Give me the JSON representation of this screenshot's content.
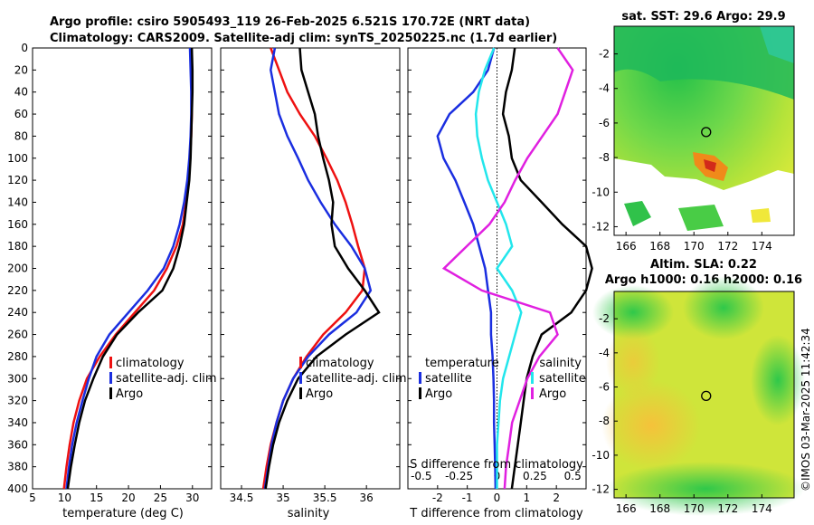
{
  "titles": {
    "line1": "Argo profile: csiro 5905493_119 26-Feb-2025 6.521S 170.72E (NRT data)",
    "line2": "Climatology: CARS2009. Satellite-adj clim: synTS_20250225.nc (1.7d earlier)",
    "sst": "sat. SST: 29.6 Argo: 29.9",
    "sla1": "Altim. SLA: 0.22",
    "sla2": "Argo h1000: 0.16 h2000: 0.16"
  },
  "copyright": "©IMOS 03-Mar-2025 11:42:34",
  "colors": {
    "clim": "#ee1111",
    "sat": "#1a2ee0",
    "argo": "#000000",
    "cyan": "#22e6ec",
    "magenta": "#e020e0"
  },
  "depth_ticks": [
    "0",
    "20",
    "40",
    "60",
    "80",
    "100",
    "120",
    "140",
    "160",
    "180",
    "200",
    "220",
    "240",
    "260",
    "280",
    "300",
    "320",
    "340",
    "360",
    "380",
    "400"
  ],
  "chart_data": [
    {
      "type": "line",
      "title": "",
      "xlabel": "temperature (deg C)",
      "ylabel": "depth",
      "xlim": [
        5,
        33
      ],
      "ylim": [
        400,
        0
      ],
      "xticks": [
        "5",
        "10",
        "15",
        "20",
        "25",
        "30"
      ],
      "legend": [
        "climatology",
        "satellite-adj. clim",
        "Argo"
      ],
      "legend_location": "lower-right",
      "series": [
        {
          "name": "climatology",
          "x": [
            29.8,
            29.9,
            29.9,
            29.9,
            29.8,
            29.6,
            29.4,
            29.0,
            28.5,
            27.5,
            26.0,
            24.0,
            21.0,
            18.0,
            15.5,
            13.5,
            12.3,
            11.4,
            10.8,
            10.3,
            9.9
          ],
          "y": [
            0,
            20,
            40,
            60,
            80,
            100,
            120,
            140,
            160,
            180,
            200,
            220,
            240,
            260,
            280,
            300,
            320,
            340,
            360,
            380,
            400
          ]
        },
        {
          "name": "satellite-adj. clim",
          "x": [
            29.6,
            29.7,
            29.8,
            29.8,
            29.7,
            29.5,
            29.2,
            28.7,
            28.0,
            27.0,
            25.5,
            23.0,
            20.0,
            17.0,
            15.0,
            13.8,
            12.8,
            11.9,
            11.2,
            10.7,
            10.3
          ],
          "y": [
            0,
            20,
            40,
            60,
            80,
            100,
            120,
            140,
            160,
            180,
            200,
            220,
            240,
            260,
            280,
            300,
            320,
            340,
            360,
            380,
            400
          ]
        },
        {
          "name": "Argo",
          "x": [
            29.9,
            30.0,
            30.0,
            29.9,
            29.8,
            29.7,
            29.5,
            29.1,
            28.7,
            28.0,
            27.0,
            25.3,
            21.5,
            18.2,
            16.0,
            14.5,
            13.2,
            12.3,
            11.6,
            11.0,
            10.5
          ],
          "y": [
            0,
            20,
            40,
            60,
            80,
            100,
            120,
            140,
            160,
            180,
            200,
            220,
            240,
            260,
            280,
            300,
            320,
            340,
            360,
            380,
            400
          ]
        }
      ]
    },
    {
      "type": "line",
      "title": "",
      "xlabel": "salinity",
      "ylabel": "depth",
      "xlim": [
        34.25,
        36.4
      ],
      "ylim": [
        400,
        0
      ],
      "xticks": [
        "34.5",
        "35",
        "35.5",
        "36"
      ],
      "legend": [
        "climatology",
        "satellite-adj. clim",
        "Argo"
      ],
      "legend_location": "lower-right",
      "series": [
        {
          "name": "climatology",
          "x": [
            34.85,
            34.95,
            35.05,
            35.2,
            35.38,
            35.52,
            35.65,
            35.75,
            35.83,
            35.9,
            35.98,
            35.95,
            35.75,
            35.48,
            35.28,
            35.12,
            35.0,
            34.92,
            34.85,
            34.8,
            34.76
          ],
          "y": [
            0,
            20,
            40,
            60,
            80,
            100,
            120,
            140,
            160,
            180,
            200,
            220,
            240,
            260,
            280,
            300,
            320,
            340,
            360,
            380,
            400
          ]
        },
        {
          "name": "satellite-adj. clim",
          "x": [
            34.9,
            34.85,
            34.9,
            34.95,
            35.05,
            35.18,
            35.3,
            35.45,
            35.62,
            35.82,
            35.98,
            36.05,
            35.88,
            35.55,
            35.3,
            35.12,
            35.0,
            34.92,
            34.86,
            34.82,
            34.78
          ],
          "y": [
            0,
            20,
            40,
            60,
            80,
            100,
            120,
            140,
            160,
            180,
            200,
            220,
            240,
            260,
            280,
            300,
            320,
            340,
            360,
            380,
            400
          ]
        },
        {
          "name": "Argo",
          "x": [
            35.2,
            35.22,
            35.3,
            35.38,
            35.42,
            35.48,
            35.55,
            35.6,
            35.58,
            35.62,
            35.78,
            35.98,
            36.15,
            35.75,
            35.4,
            35.18,
            35.05,
            34.95,
            34.88,
            34.83,
            34.79
          ],
          "y": [
            0,
            20,
            40,
            60,
            80,
            100,
            120,
            140,
            160,
            180,
            200,
            220,
            240,
            260,
            280,
            300,
            320,
            340,
            360,
            380,
            400
          ]
        }
      ]
    },
    {
      "type": "line",
      "title": "",
      "xlabel": "T difference from climatology",
      "x2label": "S difference from climatology",
      "ylabel": "depth",
      "xlim": [
        -3,
        3
      ],
      "ylim": [
        400,
        0
      ],
      "xticks": [
        "-2",
        "-1",
        "0",
        "1",
        "2"
      ],
      "x2ticks": [
        "-0.5",
        "-0.25",
        "0",
        "0.25",
        "0.5"
      ],
      "legend_T_title": "temperature",
      "legend_S_title": "salinity",
      "legend_T": [
        "satellite",
        "Argo"
      ],
      "legend_S": [
        "satellite",
        "Argo"
      ],
      "series": [
        {
          "name": "temperature satellite",
          "x": [
            -0.1,
            -0.3,
            -0.8,
            -1.6,
            -2.0,
            -1.8,
            -1.4,
            -1.1,
            -0.8,
            -0.6,
            -0.4,
            -0.3,
            -0.2,
            -0.2,
            -0.15,
            -0.12,
            -0.1,
            -0.1,
            -0.08,
            -0.06,
            -0.05
          ],
          "y": [
            0,
            20,
            40,
            60,
            80,
            100,
            120,
            140,
            160,
            180,
            200,
            220,
            240,
            260,
            280,
            300,
            320,
            340,
            360,
            380,
            400
          ]
        },
        {
          "name": "temperature Argo",
          "x": [
            0.6,
            0.5,
            0.3,
            0.2,
            0.4,
            0.5,
            0.8,
            1.5,
            2.2,
            3.0,
            3.2,
            3.0,
            2.5,
            1.5,
            1.2,
            1.0,
            0.9,
            0.8,
            0.7,
            0.6,
            0.5
          ],
          "y": [
            0,
            20,
            40,
            60,
            80,
            100,
            120,
            140,
            160,
            180,
            200,
            220,
            240,
            260,
            280,
            300,
            320,
            340,
            360,
            380,
            400
          ]
        },
        {
          "name": "salinity satellite",
          "x": [
            -0.02,
            -0.08,
            -0.12,
            -0.14,
            -0.13,
            -0.1,
            -0.06,
            0.0,
            0.06,
            0.1,
            0.0,
            0.1,
            0.16,
            0.12,
            0.08,
            0.04,
            0.02,
            0.01,
            0.0,
            0.0,
            0.0
          ],
          "y": [
            0,
            20,
            40,
            60,
            80,
            100,
            120,
            140,
            160,
            180,
            200,
            220,
            240,
            260,
            280,
            300,
            320,
            340,
            360,
            380,
            400
          ]
        },
        {
          "name": "salinity Argo",
          "x": [
            0.4,
            0.5,
            0.45,
            0.4,
            0.3,
            0.2,
            0.12,
            0.05,
            -0.05,
            -0.2,
            -0.35,
            -0.1,
            0.35,
            0.4,
            0.28,
            0.2,
            0.15,
            0.1,
            0.08,
            0.06,
            0.05
          ],
          "y": [
            0,
            20,
            40,
            60,
            80,
            100,
            120,
            140,
            160,
            180,
            200,
            220,
            240,
            260,
            280,
            300,
            320,
            340,
            360,
            380,
            400
          ]
        }
      ]
    },
    {
      "type": "heatmap",
      "title": "sat. SST: 29.6 Argo: 29.9",
      "xticks": [
        "166",
        "168",
        "170",
        "172",
        "174"
      ],
      "yticks": [
        "-2",
        "-4",
        "-6",
        "-8",
        "-10",
        "-12"
      ],
      "xlim": [
        165.3,
        175.9
      ],
      "ylim": [
        -12.5,
        -0.4
      ],
      "marker": {
        "lon": 170.72,
        "lat": -6.521
      }
    },
    {
      "type": "heatmap",
      "title": "Altim. SLA: 0.22 / Argo h1000: 0.16 h2000: 0.16",
      "xticks": [
        "166",
        "168",
        "170",
        "172",
        "174"
      ],
      "yticks": [
        "-2",
        "-4",
        "-6",
        "-8",
        "-10",
        "-12"
      ],
      "xlim": [
        165.3,
        175.9
      ],
      "ylim": [
        -12.5,
        -0.4
      ],
      "marker": {
        "lon": 170.72,
        "lat": -6.521
      }
    }
  ]
}
